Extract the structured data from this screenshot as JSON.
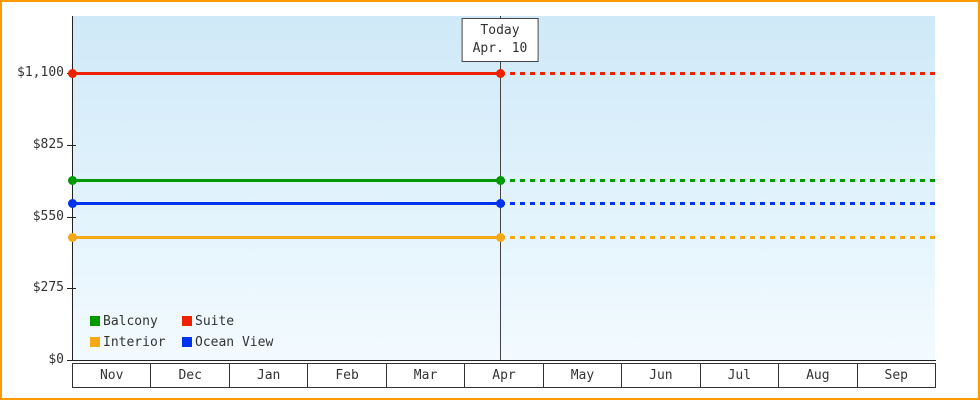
{
  "chart_data": {
    "type": "line",
    "x_axis": {
      "months": [
        "Nov",
        "Dec",
        "Jan",
        "Feb",
        "Mar",
        "Apr",
        "May",
        "Jun",
        "Jul",
        "Aug",
        "Sep"
      ]
    },
    "y_axis": {
      "ticks": [
        {
          "label": "$1,100",
          "value": 1100
        },
        {
          "label": "$825",
          "value": 825
        },
        {
          "label": "$550",
          "value": 550
        },
        {
          "label": "$275",
          "value": 275
        },
        {
          "label": "$0",
          "value": 0
        }
      ],
      "tick_step_value": 275,
      "grid": false
    },
    "today": {
      "label_line1": "Today",
      "label_line2": "Apr. 10",
      "month_index": 5,
      "fraction": 0.45
    },
    "series": [
      {
        "name": "Suite",
        "value": 1100,
        "color": "#ee2200",
        "style": "solid-then-dotted"
      },
      {
        "name": "Balcony",
        "value": 690,
        "color": "#009900",
        "style": "solid-then-dotted"
      },
      {
        "name": "Ocean View",
        "value": 600,
        "color": "#0033ee",
        "style": "solid-then-dotted"
      },
      {
        "name": "Interior",
        "value": 470,
        "color": "#f5a916",
        "style": "solid-then-dotted"
      }
    ],
    "legend": [
      {
        "label": "Balcony",
        "color": "#009900"
      },
      {
        "label": "Suite",
        "color": "#ee2200"
      },
      {
        "label": "Interior",
        "color": "#f5a916"
      },
      {
        "label": "Ocean View",
        "color": "#0033ee"
      }
    ],
    "legend_position": "bottom-left"
  },
  "colors": {
    "frame_border": "#ff9900",
    "plot_background_top": "#cfe9f8",
    "plot_background_bottom": "#f3fbff",
    "axis": "#222222",
    "text": "#333333",
    "today_line": "#444444"
  }
}
